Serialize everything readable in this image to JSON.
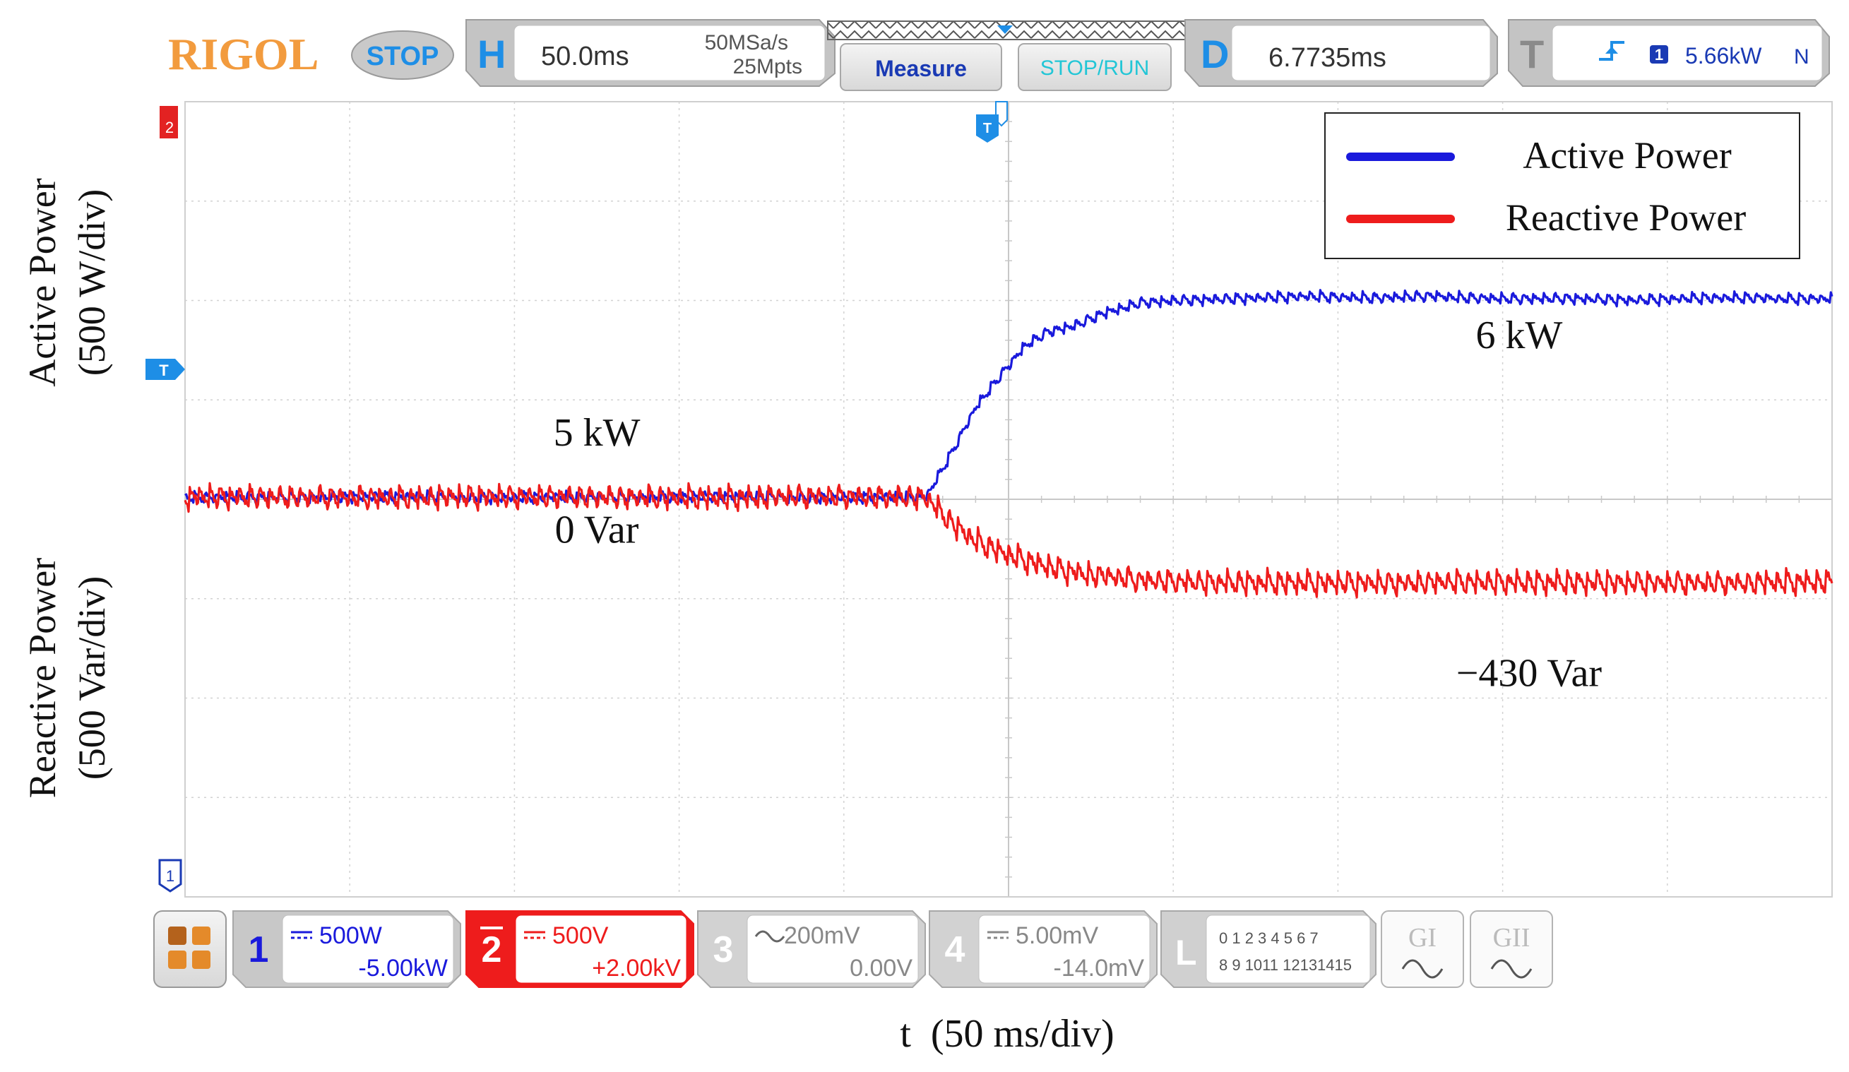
{
  "scope": {
    "brand": "RIGOL",
    "run_state": "STOP",
    "horizontal": {
      "letter": "H",
      "timebase": "50.0ms",
      "sample_rate": "50MSa/s",
      "memory_depth": "25Mpts"
    },
    "menu": {
      "measure": "Measure",
      "stop_run": "STOP/RUN"
    },
    "delay": {
      "letter": "D",
      "value": "6.7735ms"
    },
    "trigger": {
      "letter": "T",
      "source": "1",
      "level": "5.66kW",
      "mode": "N"
    },
    "markers": {
      "ch2": "2",
      "trigger": "T",
      "ch1": "1"
    },
    "channels": [
      {
        "num": "1",
        "scale": "500W",
        "offset": "-5.00kW",
        "color": "#1a1adc",
        "active": true
      },
      {
        "num": "2",
        "scale": "500V",
        "offset": "+2.00kV",
        "color": "#ee1c1c",
        "active": true
      },
      {
        "num": "3",
        "scale": "200mV",
        "offset": "0.00V",
        "color": "#b4b4b4",
        "active": false
      },
      {
        "num": "4",
        "scale": "5.00mV",
        "offset": "-14.0mV",
        "color": "#b4b4b4",
        "active": false
      }
    ],
    "logic": {
      "letter": "L",
      "row1": "0 1 2 3  4 5 6 7",
      "row2": "8 9 1011 12131415"
    },
    "gen": [
      "GI",
      "GII"
    ],
    "colors": {
      "accent_blue": "#1e8ee6",
      "active_power": "#1a1adc",
      "reactive_power": "#ee1c1c",
      "brand_orange": "#f29b3e"
    }
  },
  "chart_data": {
    "type": "line",
    "title": "",
    "xlabel": "t  (50 ms/div)",
    "ylabel_left_top": [
      "Active Power",
      "(500 W/div)"
    ],
    "ylabel_left_bottom": [
      "Reactive Power",
      "(500 Var/div)"
    ],
    "x_unit": "ms",
    "xlim": [
      0,
      500
    ],
    "divisions": {
      "x": 10,
      "y": 8
    },
    "grid": true,
    "legend": {
      "position": "top-right",
      "entries": [
        "Active Power",
        "Reactive Power"
      ]
    },
    "series": [
      {
        "name": "Active Power",
        "unit": "W",
        "color": "#1a1adc",
        "points": [
          [
            0,
            5000
          ],
          [
            225,
            5000
          ],
          [
            232,
            5200
          ],
          [
            240,
            5450
          ],
          [
            248,
            5620
          ],
          [
            255,
            5760
          ],
          [
            262,
            5830
          ],
          [
            270,
            5860
          ],
          [
            280,
            5930
          ],
          [
            290,
            5980
          ],
          [
            300,
            5990
          ],
          [
            320,
            6000
          ],
          [
            340,
            6010
          ],
          [
            360,
            6000
          ],
          [
            380,
            6010
          ],
          [
            400,
            6000
          ],
          [
            420,
            6000
          ],
          [
            440,
            5990
          ],
          [
            460,
            6000
          ],
          [
            480,
            6000
          ],
          [
            500,
            6000
          ]
        ]
      },
      {
        "name": "Reactive Power",
        "unit": "Var",
        "color": "#ee1c1c",
        "points": [
          [
            0,
            0
          ],
          [
            225,
            0
          ],
          [
            232,
            -120
          ],
          [
            240,
            -220
          ],
          [
            250,
            -290
          ],
          [
            258,
            -330
          ],
          [
            265,
            -360
          ],
          [
            275,
            -390
          ],
          [
            290,
            -420
          ],
          [
            310,
            -430
          ],
          [
            330,
            -430
          ],
          [
            360,
            -430
          ],
          [
            400,
            -430
          ],
          [
            440,
            -430
          ],
          [
            470,
            -430
          ],
          [
            500,
            -430
          ]
        ]
      }
    ],
    "annotations": [
      {
        "text": "5 kW",
        "x": 125,
        "y_active": 5260
      },
      {
        "text": "0 Var",
        "x": 125,
        "y_reactive": -230
      },
      {
        "text": "6 kW",
        "x": 405,
        "y_active": 5750
      },
      {
        "text": "−430 Var",
        "x": 408,
        "y_reactive": -950
      }
    ]
  }
}
